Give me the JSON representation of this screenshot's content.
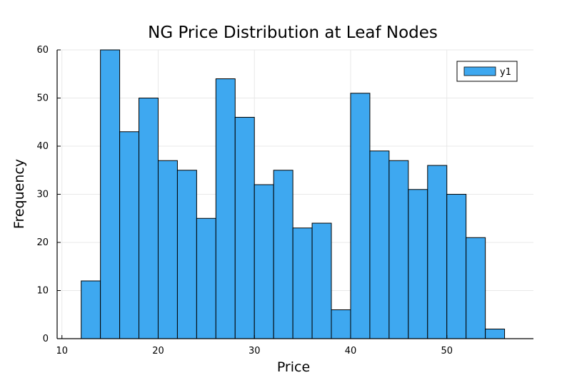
{
  "chart_data": {
    "type": "bar",
    "title": "NG Price Distribution at Leaf Nodes",
    "xlabel": "Price",
    "ylabel": "Frequency",
    "xlim": [
      9.5,
      59
    ],
    "ylim": [
      0,
      60
    ],
    "xticks": [
      10,
      20,
      30,
      40,
      50
    ],
    "yticks": [
      0,
      10,
      20,
      30,
      40,
      50,
      60
    ],
    "grid": true,
    "legend_position": "top-right",
    "bar_color": "#3ea8f0",
    "bin_edges": [
      12,
      14,
      16,
      18,
      20,
      22,
      24,
      26,
      28,
      30,
      32,
      34,
      36,
      38,
      40,
      42,
      44,
      46,
      48,
      50,
      52,
      54,
      56
    ],
    "values": [
      12,
      60,
      43,
      50,
      37,
      35,
      25,
      54,
      46,
      32,
      35,
      23,
      24,
      6,
      51,
      39,
      37,
      31,
      36,
      30,
      21,
      2
    ],
    "series": [
      {
        "name": "y1"
      }
    ]
  }
}
